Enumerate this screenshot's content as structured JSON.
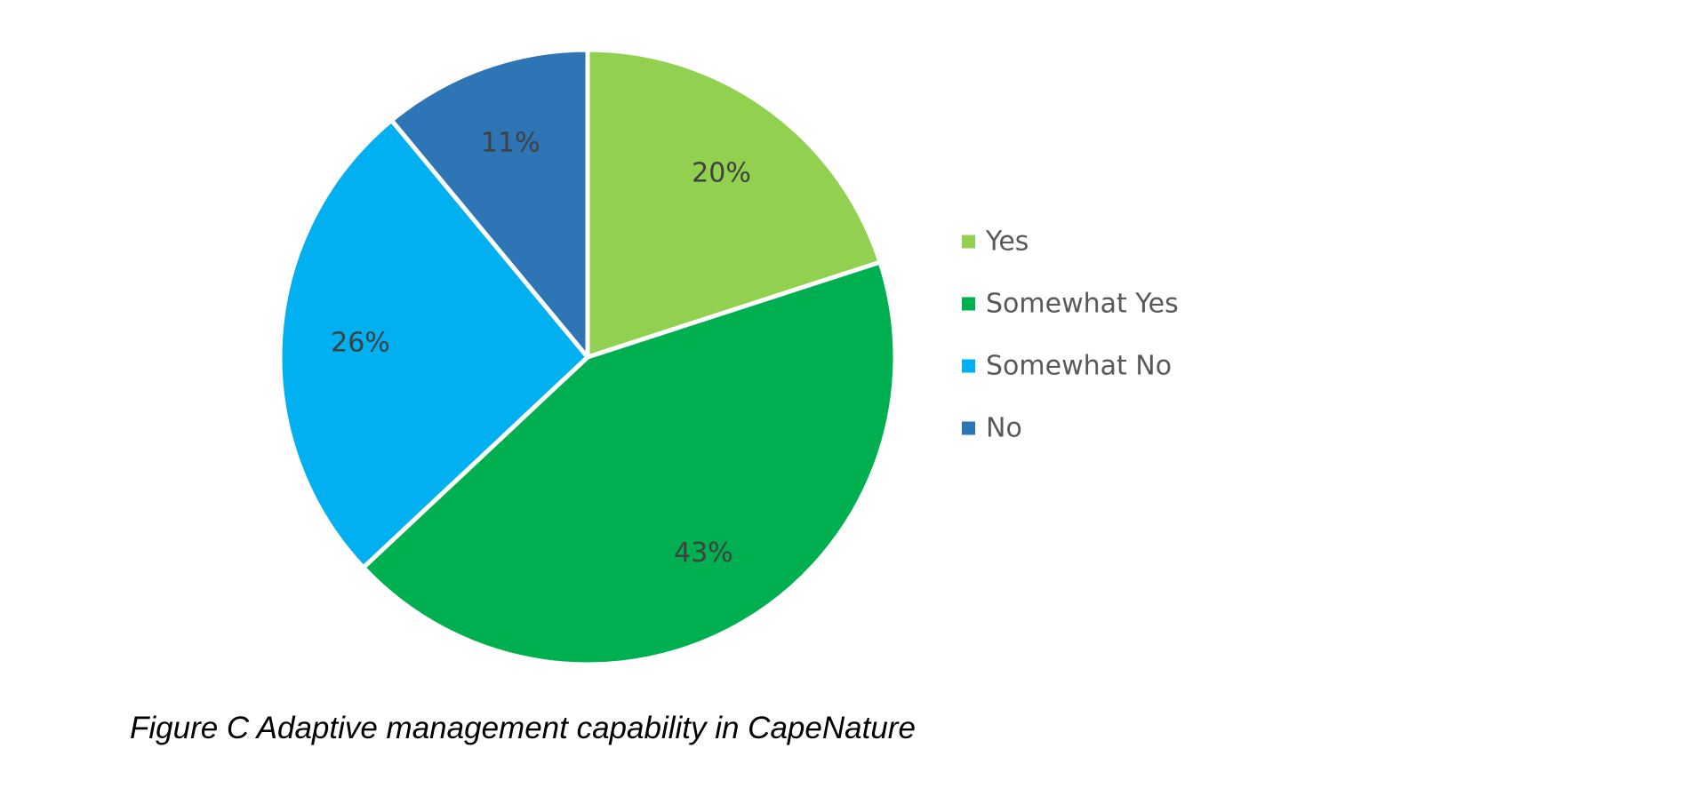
{
  "chart_data": {
    "type": "pie",
    "title": "",
    "categories": [
      "Yes",
      "Somewhat Yes",
      "Somewhat No",
      "No"
    ],
    "values": [
      20,
      43,
      26,
      11
    ],
    "labels": [
      "20%",
      "43%",
      "26%",
      "11%"
    ],
    "colors": [
      "#92D050",
      "#00B050",
      "#00B0F0",
      "#2E75B6"
    ],
    "legend_position": "right",
    "legend": [
      "Yes",
      "Somewhat Yes",
      "Somewhat No",
      "No"
    ]
  },
  "caption": "Figure C Adaptive management capability in CapeNature"
}
